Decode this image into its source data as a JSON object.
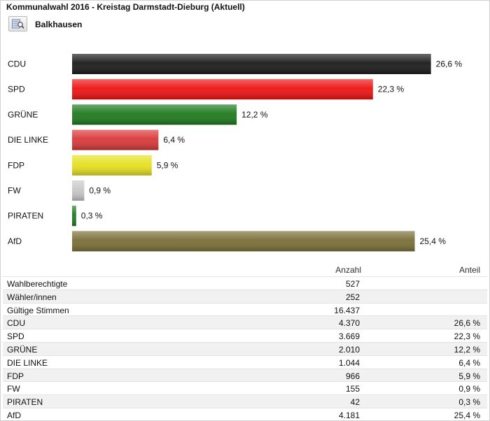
{
  "header": {
    "title": "Kommunalwahl 2016 - Kreistag Darmstadt-Dieburg (Aktuell)",
    "location": "Balkhausen",
    "location_icon": "map-search-icon"
  },
  "chart_data": {
    "type": "bar",
    "orientation": "horizontal",
    "categories": [
      "CDU",
      "SPD",
      "GRÜNE",
      "DIE LINKE",
      "FDP",
      "FW",
      "PIRATEN",
      "AfD"
    ],
    "values": [
      26.6,
      22.3,
      12.2,
      6.4,
      5.9,
      0.9,
      0.3,
      25.4
    ],
    "value_labels": [
      "26,6 %",
      "22,3 %",
      "12,2 %",
      "6,4 %",
      "5,9 %",
      "0,9 %",
      "0,3 %",
      "25,4 %"
    ],
    "colors": [
      "#1a1a1a",
      "#ee1111",
      "#1e7a1e",
      "#d83838",
      "#e6e020",
      "#c8c8c8",
      "#1e7a1e",
      "#7a6f36"
    ],
    "xlim": [
      0,
      27.5
    ],
    "grid": false,
    "legend": "none"
  },
  "table": {
    "headers": {
      "anzahl": "Anzahl",
      "anteil": "Anteil"
    },
    "rows": [
      {
        "name": "Wahlberechtigte",
        "anzahl": "527",
        "anteil": ""
      },
      {
        "name": "Wähler/innen",
        "anzahl": "252",
        "anteil": ""
      },
      {
        "name": "Gültige Stimmen",
        "anzahl": "16.437",
        "anteil": ""
      },
      {
        "name": "CDU",
        "anzahl": "4.370",
        "anteil": "26,6 %"
      },
      {
        "name": "SPD",
        "anzahl": "3.669",
        "anteil": "22,3 %"
      },
      {
        "name": "GRÜNE",
        "anzahl": "2.010",
        "anteil": "12,2 %"
      },
      {
        "name": "DIE LINKE",
        "anzahl": "1.044",
        "anteil": "6,4 %"
      },
      {
        "name": "FDP",
        "anzahl": "966",
        "anteil": "5,9 %"
      },
      {
        "name": "FW",
        "anzahl": "155",
        "anteil": "0,9 %"
      },
      {
        "name": "PIRATEN",
        "anzahl": "42",
        "anteil": "0,3 %"
      },
      {
        "name": "AfD",
        "anzahl": "4.181",
        "anteil": "25,4 %"
      }
    ]
  }
}
